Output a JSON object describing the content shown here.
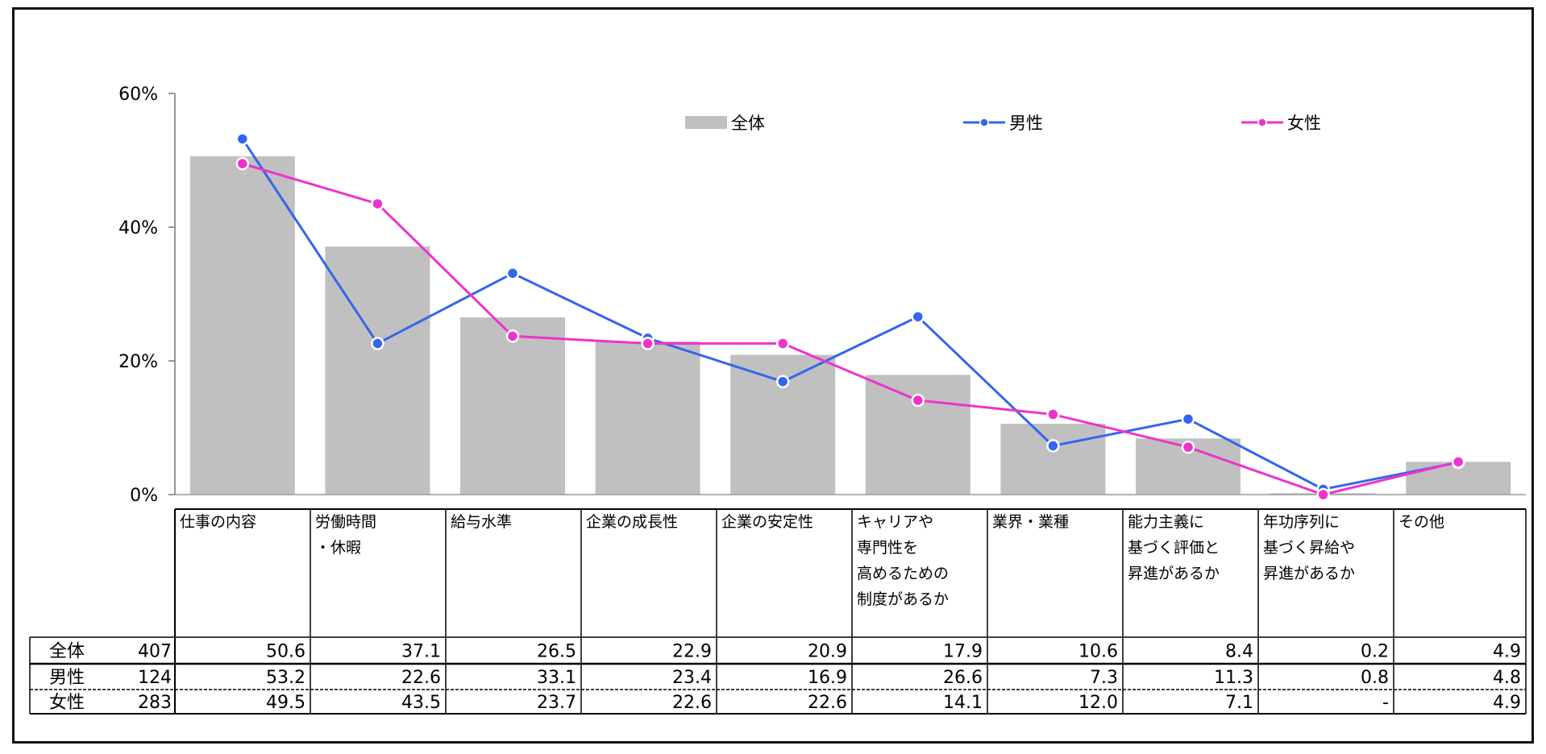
{
  "chart_data": {
    "type": "bar",
    "yticks": [
      "0%",
      "20%",
      "40%",
      "60%"
    ],
    "ylim": [
      0,
      60
    ],
    "grid": false,
    "legend_position": "top-right",
    "categories": [
      [
        "仕事の内容"
      ],
      [
        "労働時間",
        "・休暇"
      ],
      [
        "給与水準"
      ],
      [
        "企業の成長性"
      ],
      [
        "企業の安定性"
      ],
      [
        "キャリアや",
        "専門性を",
        "高めるための",
        "制度があるか"
      ],
      [
        "業界・業種"
      ],
      [
        "能力主義に",
        "基づく評価と",
        "昇進があるか"
      ],
      [
        "年功序列に",
        "基づく昇給や",
        "昇進があるか"
      ],
      [
        "その他"
      ]
    ],
    "series": [
      {
        "name": "全体",
        "type": "bar",
        "color": "#c0c0c0",
        "n": "407",
        "values": [
          50.6,
          37.1,
          26.5,
          22.9,
          20.9,
          17.9,
          10.6,
          8.4,
          0.2,
          4.9
        ],
        "labels": [
          "50.6",
          "37.1",
          "26.5",
          "22.9",
          "20.9",
          "17.9",
          "10.6",
          "8.4",
          "0.2",
          "4.9"
        ]
      },
      {
        "name": "男性",
        "type": "line",
        "color": "#3366ee",
        "n": "124",
        "values": [
          53.2,
          22.6,
          33.1,
          23.4,
          16.9,
          26.6,
          7.3,
          11.3,
          0.8,
          4.8
        ],
        "labels": [
          "53.2",
          "22.6",
          "33.1",
          "23.4",
          "16.9",
          "26.6",
          "7.3",
          "11.3",
          "0.8",
          "4.8"
        ]
      },
      {
        "name": "女性",
        "type": "line",
        "color": "#ee33cc",
        "n": "283",
        "values": [
          49.5,
          43.5,
          23.7,
          22.6,
          22.6,
          14.1,
          12.0,
          7.1,
          0,
          4.9
        ],
        "labels": [
          "49.5",
          "43.5",
          "23.7",
          "22.6",
          "22.6",
          "14.1",
          "12.0",
          "7.1",
          "-",
          "4.9"
        ]
      }
    ]
  }
}
